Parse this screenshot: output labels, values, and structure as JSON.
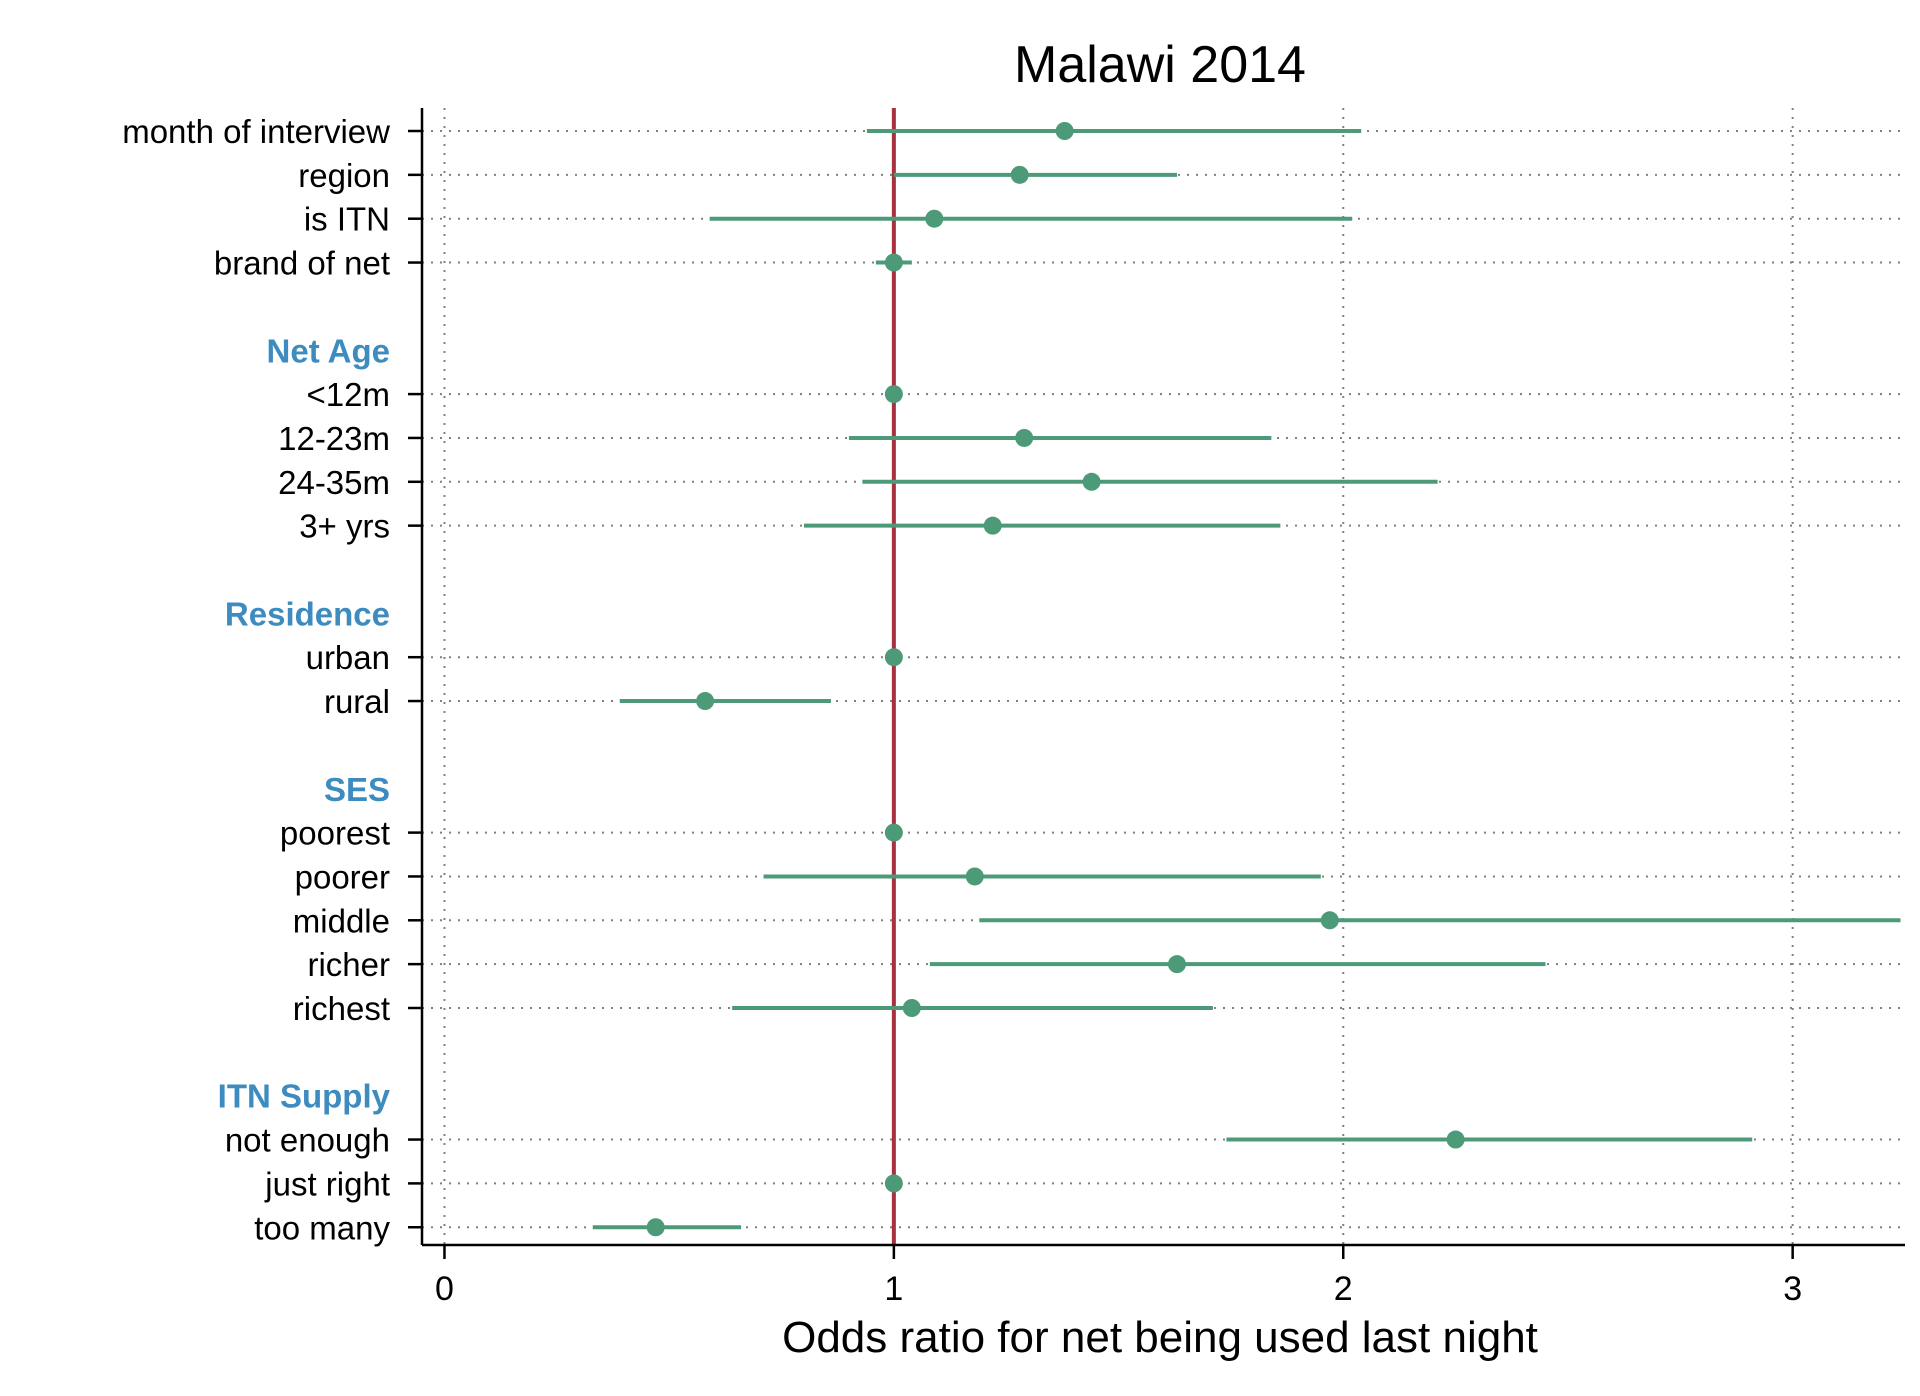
{
  "chart_data": {
    "type": "scatter",
    "subtype": "forest-plot",
    "title": "Malawi 2014",
    "xlabel": "Odds ratio for net being used last night",
    "ylabel": "",
    "xlim": [
      -0.05,
      3.25
    ],
    "xticks": [
      "0",
      "1",
      "2",
      "3"
    ],
    "grid": true,
    "legend": "none",
    "reference_line": 1,
    "colors": {
      "point": "#4c9a78",
      "ci": "#4c9a78",
      "reference": "#a8313f",
      "group_label": "#3d8bbf",
      "grid": "#808080",
      "axis": "#000000"
    },
    "rows": [
      {
        "type": "item",
        "label": "month of interview",
        "or": 1.38,
        "lo": 0.94,
        "hi": 2.04
      },
      {
        "type": "item",
        "label": "region",
        "or": 1.28,
        "lo": 1.0,
        "hi": 1.63
      },
      {
        "type": "item",
        "label": "is ITN",
        "or": 1.09,
        "lo": 0.59,
        "hi": 2.02
      },
      {
        "type": "item",
        "label": "brand of net",
        "or": 1.0,
        "lo": 0.96,
        "hi": 1.04
      },
      {
        "type": "gap"
      },
      {
        "type": "group",
        "label": "Net Age"
      },
      {
        "type": "item",
        "label": "<12m",
        "or": 1.0,
        "lo": 1.0,
        "hi": 1.0
      },
      {
        "type": "item",
        "label": "12-23m",
        "or": 1.29,
        "lo": 0.9,
        "hi": 1.84
      },
      {
        "type": "item",
        "label": "24-35m",
        "or": 1.44,
        "lo": 0.93,
        "hi": 2.21
      },
      {
        "type": "item",
        "label": "3+ yrs",
        "or": 1.22,
        "lo": 0.8,
        "hi": 1.86
      },
      {
        "type": "gap"
      },
      {
        "type": "group",
        "label": "Residence"
      },
      {
        "type": "item",
        "label": "urban",
        "or": 1.0,
        "lo": 1.0,
        "hi": 1.0
      },
      {
        "type": "item",
        "label": "rural",
        "or": 0.58,
        "lo": 0.39,
        "hi": 0.86
      },
      {
        "type": "gap"
      },
      {
        "type": "group",
        "label": "SES"
      },
      {
        "type": "item",
        "label": "poorest",
        "or": 1.0,
        "lo": 1.0,
        "hi": 1.0
      },
      {
        "type": "item",
        "label": "poorer",
        "or": 1.18,
        "lo": 0.71,
        "hi": 1.95
      },
      {
        "type": "item",
        "label": "middle",
        "or": 1.97,
        "lo": 1.19,
        "hi": 3.24
      },
      {
        "type": "item",
        "label": "richer",
        "or": 1.63,
        "lo": 1.08,
        "hi": 2.45
      },
      {
        "type": "item",
        "label": "richest",
        "or": 1.04,
        "lo": 0.64,
        "hi": 1.71
      },
      {
        "type": "gap"
      },
      {
        "type": "group",
        "label": "ITN Supply"
      },
      {
        "type": "item",
        "label": "not enough",
        "or": 2.25,
        "lo": 1.74,
        "hi": 2.91
      },
      {
        "type": "item",
        "label": "just right",
        "or": 1.0,
        "lo": 1.0,
        "hi": 1.0
      },
      {
        "type": "item",
        "label": "too many",
        "or": 0.47,
        "lo": 0.33,
        "hi": 0.66
      }
    ]
  }
}
